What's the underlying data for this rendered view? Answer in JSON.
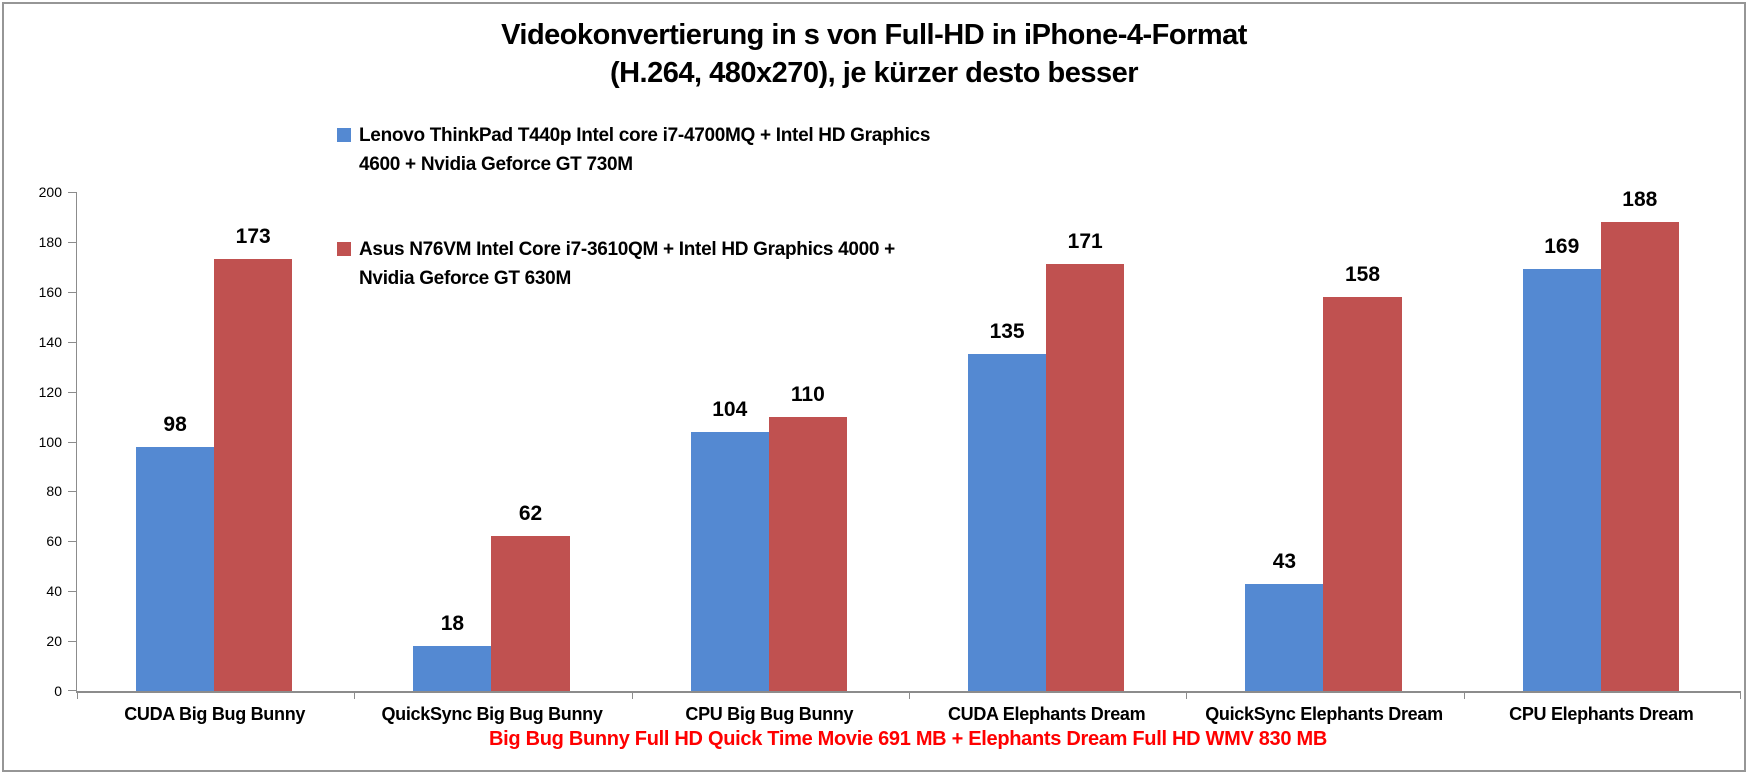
{
  "chart_data": {
    "type": "bar",
    "title": "Videokonvertierung in s von Full-HD in iPhone-4-Format (H.264, 480x270), je kürzer desto besser",
    "title_lines": [
      "Videokonvertierung in s von Full-HD in iPhone-4-Format",
      "(H.264, 480x270), je kürzer desto besser"
    ],
    "categories": [
      "CUDA Big Bug Bunny",
      "QuickSync Big Bug Bunny",
      "CPU Big Bug Bunny",
      "CUDA Elephants Dream",
      "QuickSync Elephants Dream",
      "CPU Elephants Dream"
    ],
    "series": [
      {
        "name": "Lenovo ThinkPad T440p Intel core i7-4700MQ + Intel HD Graphics 4600 + Nvidia Geforce GT 730M",
        "color": "#5489D2",
        "values": [
          98,
          18,
          104,
          135,
          43,
          169
        ]
      },
      {
        "name": "Asus N76VM Intel Core i7-3610QM + Intel HD Graphics 4000 + Nvidia Geforce GT 630M",
        "color": "#C05150",
        "values": [
          173,
          62,
          110,
          171,
          158,
          188
        ]
      }
    ],
    "ylim": [
      0,
      200
    ],
    "ytick_step": 20,
    "grid": false,
    "legend_position": "top-left-inside",
    "value_labels": true,
    "footnote": "Big Bug Bunny Full HD Quick Time Movie 691 MB + Elephants Dream Full HD WMV 830 MB",
    "footnote_color": "#FF0000"
  },
  "colors": {
    "axis": "#8C8C8C",
    "frame_border": "#969696",
    "text": "#000000"
  }
}
